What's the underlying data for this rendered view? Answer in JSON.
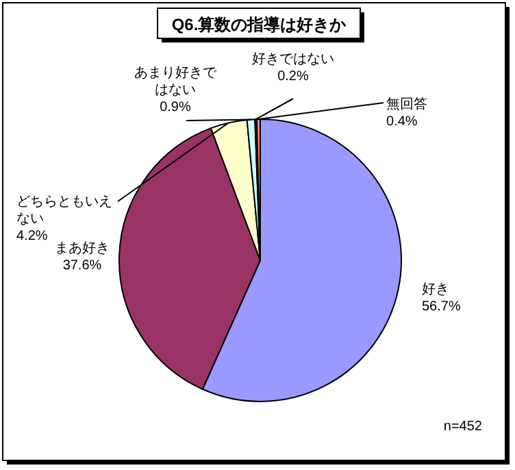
{
  "chart_data": {
    "type": "pie",
    "title": "Q6.算数の指導は好きか",
    "categories": [
      "好き",
      "まあ好き",
      "どちらともいえない",
      "あまり好きではない",
      "好きではない",
      "無回答"
    ],
    "values": [
      56.7,
      37.6,
      4.2,
      0.9,
      0.2,
      0.4
    ],
    "colors": [
      "#9999ff",
      "#993366",
      "#ffffcc",
      "#ccffff",
      "#660066",
      "#ff8080"
    ],
    "value_labels": [
      "56.7%",
      "37.6%",
      "4.2%",
      "0.9%",
      "0.2%",
      "0.4%"
    ],
    "annotations": [
      "n=452"
    ]
  }
}
